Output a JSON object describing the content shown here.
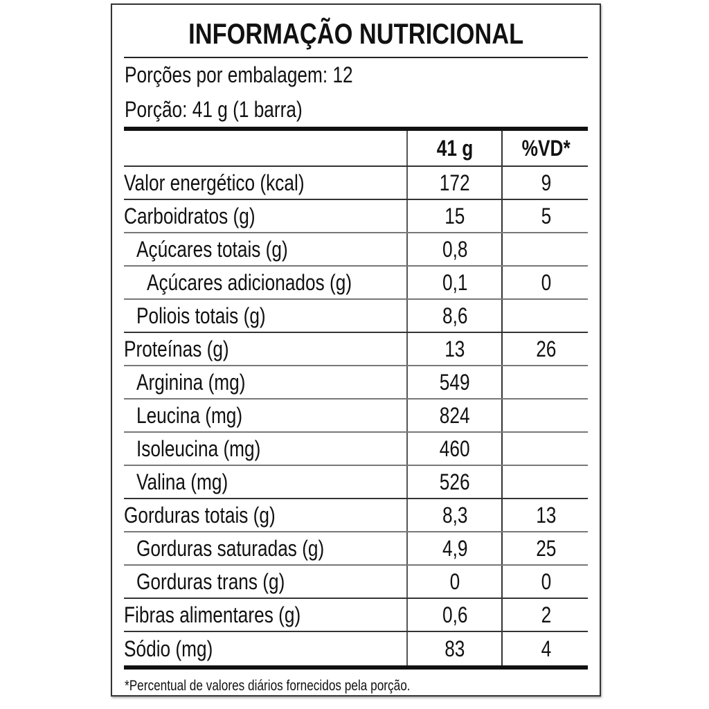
{
  "title": "INFORMAÇÃO NUTRICIONAL",
  "servings_per_package": "Porções por embalagem: 12",
  "serving_size": "Porção: 41 g (1 barra)",
  "columns": [
    "",
    "41 g",
    "%VD*"
  ],
  "rows": [
    {
      "label": "Valor energético (kcal)",
      "amount": "172",
      "dv": "9",
      "level": 0
    },
    {
      "label": "Carboidratos (g)",
      "amount": "15",
      "dv": "5",
      "level": 0
    },
    {
      "label": "Açúcares totais (g)",
      "amount": "0,8",
      "dv": "",
      "level": 1
    },
    {
      "label": "Açúcares adicionados (g)",
      "amount": "0,1",
      "dv": "0",
      "level": 2
    },
    {
      "label": "Poliois totais (g)",
      "amount": "8,6",
      "dv": "",
      "level": 1
    },
    {
      "label": "Proteínas (g)",
      "amount": "13",
      "dv": "26",
      "level": 0
    },
    {
      "label": "Arginina (mg)",
      "amount": "549",
      "dv": "",
      "level": 1
    },
    {
      "label": "Leucina (mg)",
      "amount": "824",
      "dv": "",
      "level": 1
    },
    {
      "label": "Isoleucina (mg)",
      "amount": "460",
      "dv": "",
      "level": 1
    },
    {
      "label": "Valina (mg)",
      "amount": "526",
      "dv": "",
      "level": 1
    },
    {
      "label": "Gorduras totais (g)",
      "amount": "8,3",
      "dv": "13",
      "level": 0
    },
    {
      "label": "Gorduras saturadas (g)",
      "amount": "4,9",
      "dv": "25",
      "level": 1
    },
    {
      "label": "Gorduras trans (g)",
      "amount": "0",
      "dv": "0",
      "level": 1
    },
    {
      "label": "Fibras alimentares (g)",
      "amount": "0,6",
      "dv": "2",
      "level": 0
    },
    {
      "label": "Sódio (mg)",
      "amount": "83",
      "dv": "4",
      "level": 0
    }
  ],
  "footnote": "*Percentual de valores diários fornecidos pela porção."
}
